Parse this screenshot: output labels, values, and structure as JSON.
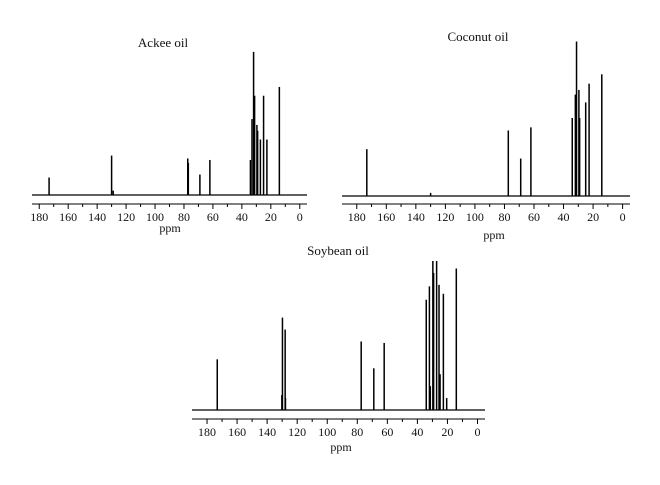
{
  "chart_data": [
    {
      "type": "line",
      "title": "Ackee oil",
      "xlabel": "ppm",
      "ylabel": "",
      "xlim": [
        185,
        -5
      ],
      "x_reversed": true,
      "xticks": [
        180,
        160,
        140,
        120,
        100,
        80,
        60,
        40,
        20,
        0
      ],
      "ylim": [
        0,
        1
      ],
      "grid": false,
      "peaks": [
        {
          "ppm": 173.2,
          "intensity": 0.12
        },
        {
          "ppm": 130.0,
          "intensity": 0.27
        },
        {
          "ppm": 128.9,
          "intensity": 0.03
        },
        {
          "ppm": 77.4,
          "intensity": 0.25
        },
        {
          "ppm": 77.0,
          "intensity": 0.22
        },
        {
          "ppm": 69.0,
          "intensity": 0.14
        },
        {
          "ppm": 62.1,
          "intensity": 0.24
        },
        {
          "ppm": 34.1,
          "intensity": 0.24
        },
        {
          "ppm": 33.0,
          "intensity": 0.52
        },
        {
          "ppm": 31.9,
          "intensity": 0.98
        },
        {
          "ppm": 31.2,
          "intensity": 0.68
        },
        {
          "ppm": 29.6,
          "intensity": 0.48
        },
        {
          "ppm": 29.1,
          "intensity": 0.44
        },
        {
          "ppm": 27.2,
          "intensity": 0.38
        },
        {
          "ppm": 25.0,
          "intensity": 0.68
        },
        {
          "ppm": 22.7,
          "intensity": 0.38
        },
        {
          "ppm": 14.1,
          "intensity": 0.74
        }
      ]
    },
    {
      "type": "line",
      "title": "Coconut oil",
      "xlabel": "ppm",
      "ylabel": "",
      "xlim": [
        190,
        -5
      ],
      "x_reversed": true,
      "xticks": [
        180,
        160,
        140,
        120,
        100,
        80,
        60,
        40,
        20,
        0
      ],
      "ylim": [
        0,
        1
      ],
      "grid": false,
      "peaks": [
        {
          "ppm": 173.2,
          "intensity": 0.3
        },
        {
          "ppm": 130.0,
          "intensity": 0.02
        },
        {
          "ppm": 77.4,
          "intensity": 0.42
        },
        {
          "ppm": 69.0,
          "intensity": 0.24
        },
        {
          "ppm": 62.1,
          "intensity": 0.44
        },
        {
          "ppm": 34.1,
          "intensity": 0.5
        },
        {
          "ppm": 32.0,
          "intensity": 0.65
        },
        {
          "ppm": 31.2,
          "intensity": 0.99
        },
        {
          "ppm": 29.6,
          "intensity": 0.68
        },
        {
          "ppm": 29.1,
          "intensity": 0.5
        },
        {
          "ppm": 25.0,
          "intensity": 0.6
        },
        {
          "ppm": 22.7,
          "intensity": 0.72
        },
        {
          "ppm": 14.1,
          "intensity": 0.78
        }
      ]
    },
    {
      "type": "line",
      "title": "Soybean oil",
      "xlabel": "ppm",
      "ylabel": "",
      "xlim": [
        190,
        -5
      ],
      "x_reversed": true,
      "xticks": [
        180,
        160,
        140,
        120,
        100,
        80,
        60,
        40,
        20,
        0
      ],
      "ylim": [
        0,
        1
      ],
      "grid": false,
      "peaks": [
        {
          "ppm": 173.2,
          "intensity": 0.34
        },
        {
          "ppm": 130.2,
          "intensity": 0.1
        },
        {
          "ppm": 129.8,
          "intensity": 0.62
        },
        {
          "ppm": 128.0,
          "intensity": 0.54
        },
        {
          "ppm": 127.8,
          "intensity": 0.08
        },
        {
          "ppm": 77.4,
          "intensity": 0.46
        },
        {
          "ppm": 69.0,
          "intensity": 0.28
        },
        {
          "ppm": 62.1,
          "intensity": 0.45
        },
        {
          "ppm": 34.1,
          "intensity": 0.74
        },
        {
          "ppm": 32.0,
          "intensity": 0.83
        },
        {
          "ppm": 31.4,
          "intensity": 0.16
        },
        {
          "ppm": 29.7,
          "intensity": 1.0
        },
        {
          "ppm": 29.2,
          "intensity": 0.92
        },
        {
          "ppm": 27.2,
          "intensity": 1.0
        },
        {
          "ppm": 25.6,
          "intensity": 0.84
        },
        {
          "ppm": 24.9,
          "intensity": 0.24
        },
        {
          "ppm": 22.7,
          "intensity": 0.78
        },
        {
          "ppm": 20.5,
          "intensity": 0.08
        },
        {
          "ppm": 14.1,
          "intensity": 0.95
        }
      ]
    }
  ]
}
